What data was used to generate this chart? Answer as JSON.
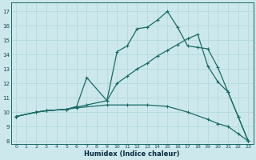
{
  "xlabel": "Humidex (Indice chaleur)",
  "bg_color": "#cce8ec",
  "line_color": "#1a6b65",
  "grid_color": "#b0d8dc",
  "xlim": [
    -0.5,
    23.5
  ],
  "ylim": [
    7.8,
    17.6
  ],
  "xticks": [
    0,
    1,
    2,
    3,
    4,
    5,
    6,
    7,
    8,
    9,
    10,
    11,
    12,
    13,
    14,
    15,
    16,
    17,
    18,
    19,
    20,
    21,
    22,
    23
  ],
  "yticks": [
    8,
    9,
    10,
    11,
    12,
    13,
    14,
    15,
    16,
    17
  ],
  "line_top": {
    "x": [
      0,
      2,
      3,
      5,
      7,
      9,
      10,
      11,
      12,
      13,
      14,
      15,
      16,
      17,
      18,
      19,
      20,
      21,
      22,
      23
    ],
    "y": [
      9.7,
      10.0,
      10.1,
      10.2,
      10.5,
      10.8,
      14.2,
      14.6,
      15.8,
      15.9,
      16.4,
      17.0,
      15.9,
      14.6,
      14.5,
      14.4,
      13.1,
      11.4,
      9.7,
      8.0
    ]
  },
  "line_mid": {
    "x": [
      0,
      2,
      3,
      5,
      6,
      7,
      9,
      10,
      11,
      12,
      13,
      14,
      15,
      16,
      17,
      18,
      19,
      20,
      21,
      22,
      23
    ],
    "y": [
      9.7,
      10.0,
      10.1,
      10.2,
      10.4,
      12.4,
      10.8,
      12.0,
      12.5,
      13.0,
      13.4,
      13.9,
      14.3,
      14.7,
      15.1,
      15.4,
      13.2,
      12.1,
      11.4,
      9.7,
      8.0
    ]
  },
  "line_bot": {
    "x": [
      0,
      2,
      3,
      5,
      6,
      9,
      11,
      13,
      15,
      17,
      19,
      20,
      21,
      22,
      23
    ],
    "y": [
      9.7,
      10.0,
      10.1,
      10.2,
      10.3,
      10.5,
      10.5,
      10.5,
      10.4,
      10.0,
      9.5,
      9.2,
      9.0,
      8.5,
      8.0
    ]
  }
}
